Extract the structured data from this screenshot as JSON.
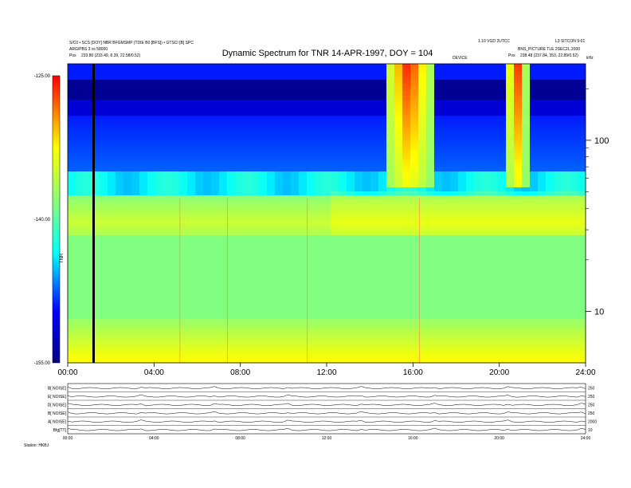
{
  "chart_data": {
    "type": "heatmap",
    "title": "Dynamic Spectrum for TNR 14-APR-1997, DOY = 104",
    "colorbar": {
      "ticks": [
        "-125.00",
        "-140.00",
        "-155.00"
      ],
      "label": "TNR",
      "range": [
        -155,
        -125
      ],
      "colors": [
        "#000080",
        "#0000ff",
        "#00ffff",
        "#80ff80",
        "#ffff00",
        "#ff0000"
      ]
    },
    "freq_axis": {
      "unit": "kHz",
      "ticks": [
        "100",
        "10"
      ],
      "scale": "log"
    },
    "time_axis": {
      "ticks": [
        "00:00",
        "04:00",
        "08:00",
        "12:00",
        "16:00",
        "20:00",
        "24:00"
      ],
      "range_hours": [
        0,
        24
      ]
    },
    "header_left": {
      "line1": "S/C0 • SCS [DOY] NBR BFGMSMP (TDIE B0 [BFS]) • GTSCI [B] SPC",
      "line2": "ARG/PBS 3 vs 58000",
      "pos_label": "Pos",
      "pos_value": "233.80 (233.49, 8.39, 22.58/0.52)"
    },
    "header_mid": "DEVICE",
    "header_right": {
      "line1": "1.10 VGD 2UTCC",
      "line1b": "L3 SITCON 9-01",
      "line2": "BNS_PICTURE TLE 2SEC2L.2000",
      "pos_label": "Pos",
      "pos_value": "238.48 (237.84, 353, 22.89/0.52)"
    },
    "cursor_hour": 1.2,
    "bursts": [
      {
        "start": 14.6,
        "end": 17.0,
        "note": "strong emission"
      },
      {
        "start": 20.3,
        "end": 21.3,
        "note": "emission"
      }
    ],
    "panels": [
      {
        "label": "B[ NOISE]",
        "right": "250"
      },
      {
        "label": "E[ NOISE]",
        "right": "250"
      },
      {
        "label": "D[ NOISE]",
        "right": "250"
      },
      {
        "label": "B[ NOISE]",
        "right": "250"
      },
      {
        "label": "A[ NOISE]",
        "right": "2000"
      },
      {
        "label": "Bfg[TT]",
        "right": "10"
      }
    ],
    "panel_time_ticks": [
      "00:00",
      "04:00",
      "08:00",
      "12:00",
      "16:00",
      "20:00",
      "24:00"
    ],
    "footer": "Station: HKBJ"
  }
}
